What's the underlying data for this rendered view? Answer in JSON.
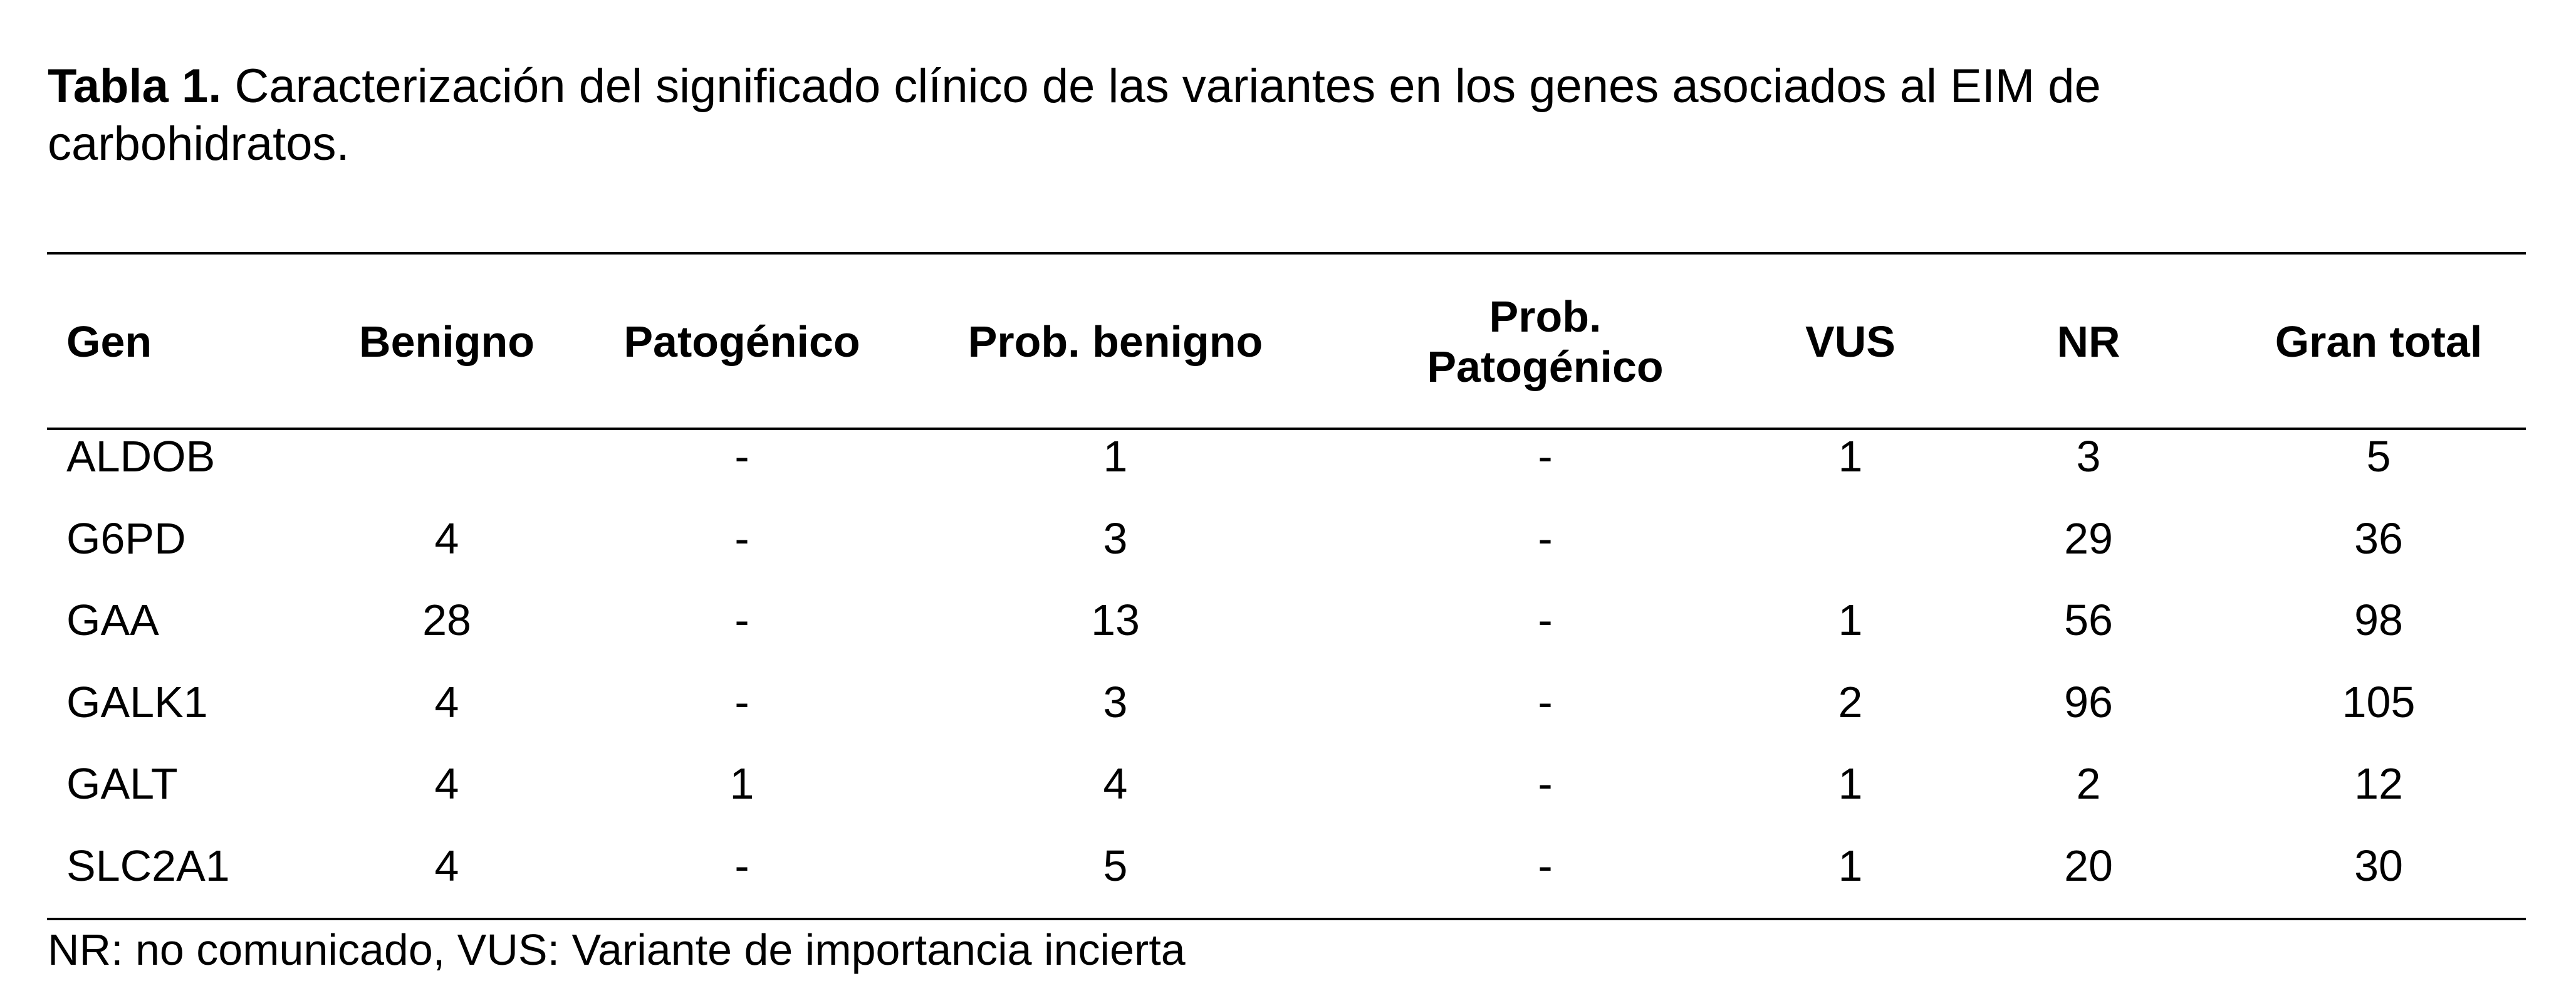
{
  "caption": {
    "label": "Tabla 1.",
    "text": "Caracterización del significado clínico de las variantes en los genes asociados al EIM de carbohidratos."
  },
  "table": {
    "header": [
      "Gen",
      "Benigno",
      "Patogénico",
      "Prob. benigno",
      "Prob. Patogénico",
      "VUS",
      "NR",
      "Gran total"
    ],
    "rows": [
      [
        "ALDOB",
        null,
        "-",
        1,
        "-",
        1,
        3,
        5
      ],
      [
        "G6PD",
        4,
        "-",
        3,
        "-",
        null,
        29,
        36
      ],
      [
        "GAA",
        28,
        "-",
        13,
        "-",
        1,
        56,
        98
      ],
      [
        "GALK1",
        4,
        "-",
        3,
        "-",
        2,
        96,
        105
      ],
      [
        "GALT",
        4,
        1,
        4,
        "-",
        1,
        2,
        12
      ],
      [
        "SLC2A1",
        4,
        "-",
        5,
        "-",
        1,
        20,
        30
      ]
    ]
  },
  "footnote": "NR: no comunicado, VUS: Variante de importancia incierta"
}
